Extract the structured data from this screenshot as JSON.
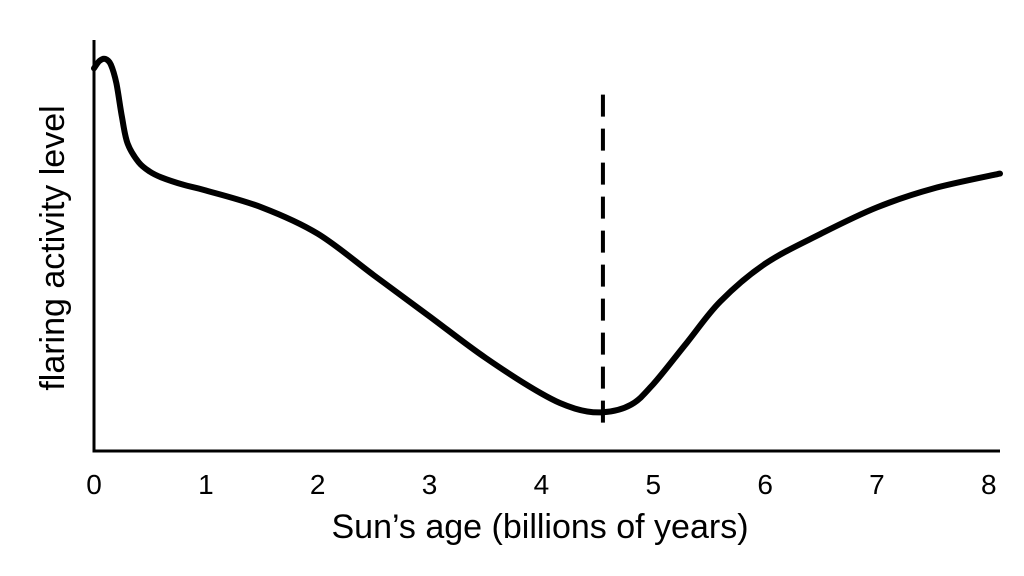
{
  "chart_data": {
    "type": "line",
    "xlabel": "Sun’s age (billions of years)",
    "ylabel": "flaring activity level",
    "xlim": [
      0,
      8.1
    ],
    "ylim": [
      0,
      1
    ],
    "xticks": [
      "0",
      "1",
      "2",
      "3",
      "4",
      "5",
      "6",
      "7",
      "8"
    ],
    "yticks_shown": false,
    "grid": false,
    "legend": "none",
    "series": [
      {
        "x": [
          0.0,
          0.05,
          0.1,
          0.15,
          0.2,
          0.25,
          0.3,
          0.4,
          0.5,
          0.6,
          0.8,
          1.0,
          1.5,
          2.0,
          2.5,
          3.0,
          3.5,
          4.0,
          4.3,
          4.55,
          4.8,
          5.0,
          5.3,
          5.6,
          6.0,
          6.5,
          7.0,
          7.5,
          8.1
        ],
        "y": [
          0.97,
          0.99,
          0.995,
          0.98,
          0.93,
          0.84,
          0.77,
          0.72,
          0.695,
          0.68,
          0.66,
          0.645,
          0.6,
          0.53,
          0.42,
          0.31,
          0.2,
          0.105,
          0.065,
          0.055,
          0.075,
          0.13,
          0.24,
          0.35,
          0.45,
          0.53,
          0.6,
          0.65,
          0.69
        ],
        "color": "#000000"
      }
    ],
    "reference_lines": [
      {
        "axis": "x",
        "value": 4.55,
        "style": "dashed",
        "y_top": 0.9
      }
    ]
  }
}
